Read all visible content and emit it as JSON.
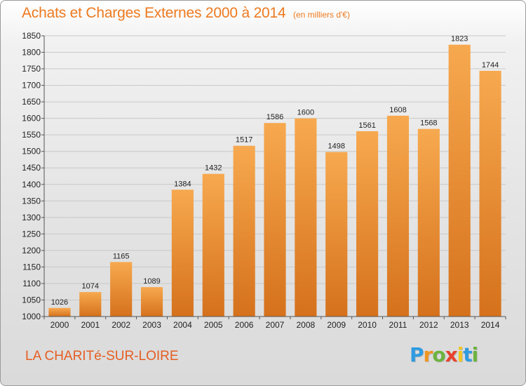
{
  "header": {
    "title": "Achats et Charges Externes 2000 à 2014",
    "unit": "(en milliers d'€)"
  },
  "footer": {
    "place": "LA CHARITé-SUR-LOIRE",
    "logo": "Proxiti",
    "logo_letters": [
      {
        "ch": "P",
        "color": "#2f9be0"
      },
      {
        "ch": "r",
        "color": "#f09522"
      },
      {
        "ch": "o",
        "color": "#6db33f"
      },
      {
        "ch": "x",
        "color": "#e8412c"
      },
      {
        "ch": "i",
        "color": "#f2c61f"
      },
      {
        "ch": "t",
        "color": "#2f9be0"
      },
      {
        "ch": "i",
        "color": "#6db33f"
      }
    ]
  },
  "chart_data": {
    "type": "bar",
    "title": "Achats et Charges Externes 2000 à 2014",
    "subtitle": "(en milliers d'€)",
    "xlabel": "",
    "ylabel": "",
    "categories": [
      "2000",
      "2001",
      "2002",
      "2003",
      "2004",
      "2005",
      "2006",
      "2007",
      "2008",
      "2009",
      "2010",
      "2011",
      "2012",
      "2013",
      "2014"
    ],
    "values": [
      1026,
      1074,
      1165,
      1089,
      1384,
      1432,
      1517,
      1586,
      1600,
      1498,
      1561,
      1608,
      1568,
      1823,
      1744
    ],
    "ylim": [
      1000,
      1850
    ],
    "yticks": [
      1000,
      1050,
      1100,
      1150,
      1200,
      1250,
      1300,
      1350,
      1400,
      1450,
      1500,
      1550,
      1600,
      1650,
      1700,
      1750,
      1800,
      1850
    ],
    "grid": true,
    "data_labels": true,
    "legend": "none",
    "colors": {
      "bar_light": "#f7a94f",
      "bar_dark": "#d5711c",
      "grid": "#c8c8c8",
      "axis": "#555555"
    }
  }
}
